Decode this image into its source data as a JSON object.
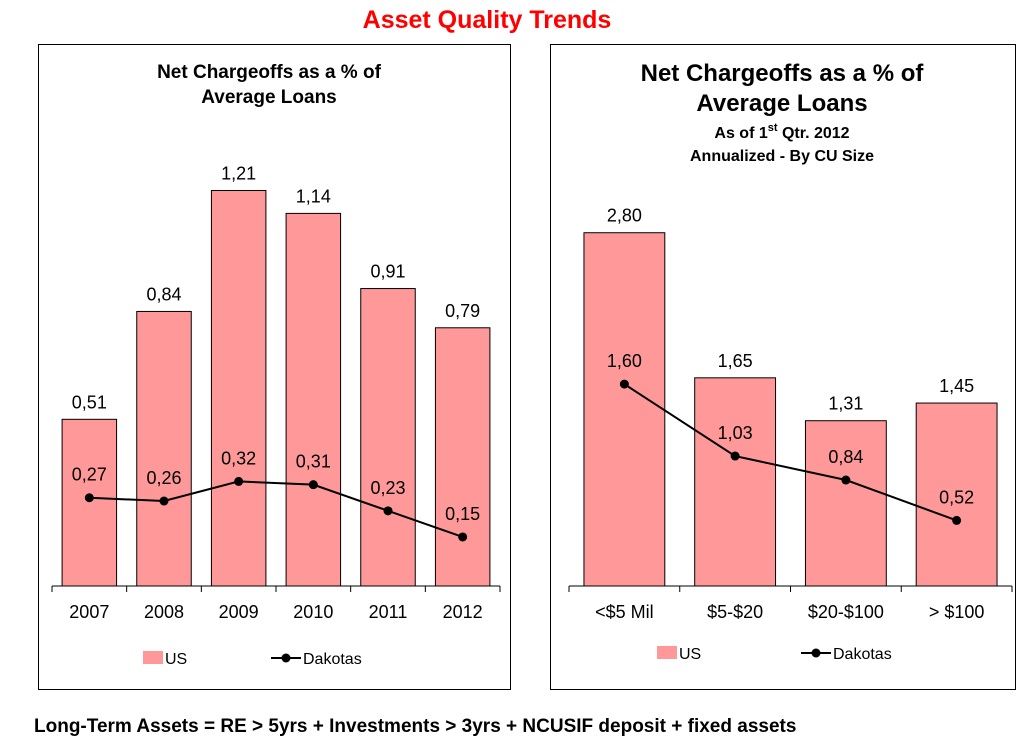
{
  "page": {
    "title": "Asset Quality Trends",
    "footer_note": "Long-Term Assets = RE > 5yrs + Investments > 3yrs + NCUSIF deposit  + fixed assets"
  },
  "colors": {
    "title": "#ff0000",
    "bar_fill": "#ff9999",
    "bar_stroke": "#000000",
    "line": "#000000"
  },
  "chart_data": [
    {
      "type": "bar",
      "title_lines": [
        "Net Chargeoffs as a % of",
        "Average Loans"
      ],
      "categories": [
        "2007",
        "2008",
        "2009",
        "2010",
        "2011",
        "2012"
      ],
      "series": [
        {
          "name": "US",
          "kind": "bar",
          "values": [
            0.51,
            0.84,
            1.21,
            1.14,
            0.91,
            0.79
          ],
          "labels": [
            "0,51",
            "0,84",
            "1,21",
            "1,14",
            "0,91",
            "0,79"
          ]
        },
        {
          "name": "Dakotas",
          "kind": "line",
          "values": [
            0.27,
            0.26,
            0.32,
            0.31,
            0.23,
            0.15
          ],
          "labels": [
            "0,27",
            "0,26",
            "0,32",
            "0,31",
            "0,23",
            "0,15"
          ]
        }
      ],
      "ylim": [
        0,
        1.4
      ],
      "grid": false,
      "legend": "bottom"
    },
    {
      "type": "bar",
      "title_lines": [
        "Net Chargeoffs as a % of",
        "Average Loans"
      ],
      "subtitle": {
        "prefix": "As of 1",
        "sup": "st",
        "suffix": " Qtr. 2012",
        "line2": "Annualized - By CU Size"
      },
      "categories": [
        "<$5 Mil",
        "$5-$20",
        "$20-$100",
        "> $100"
      ],
      "series": [
        {
          "name": "US",
          "kind": "bar",
          "values": [
            2.8,
            1.65,
            1.31,
            1.45
          ],
          "labels": [
            "2,80",
            "1,65",
            "1,31",
            "1,45"
          ]
        },
        {
          "name": "Dakotas",
          "kind": "line",
          "values": [
            1.6,
            1.03,
            0.84,
            0.52
          ],
          "labels": [
            "1,60",
            "1,03",
            "0,84",
            "0,52"
          ]
        }
      ],
      "ylim": [
        0,
        3.5
      ],
      "grid": false,
      "legend": "bottom"
    }
  ]
}
